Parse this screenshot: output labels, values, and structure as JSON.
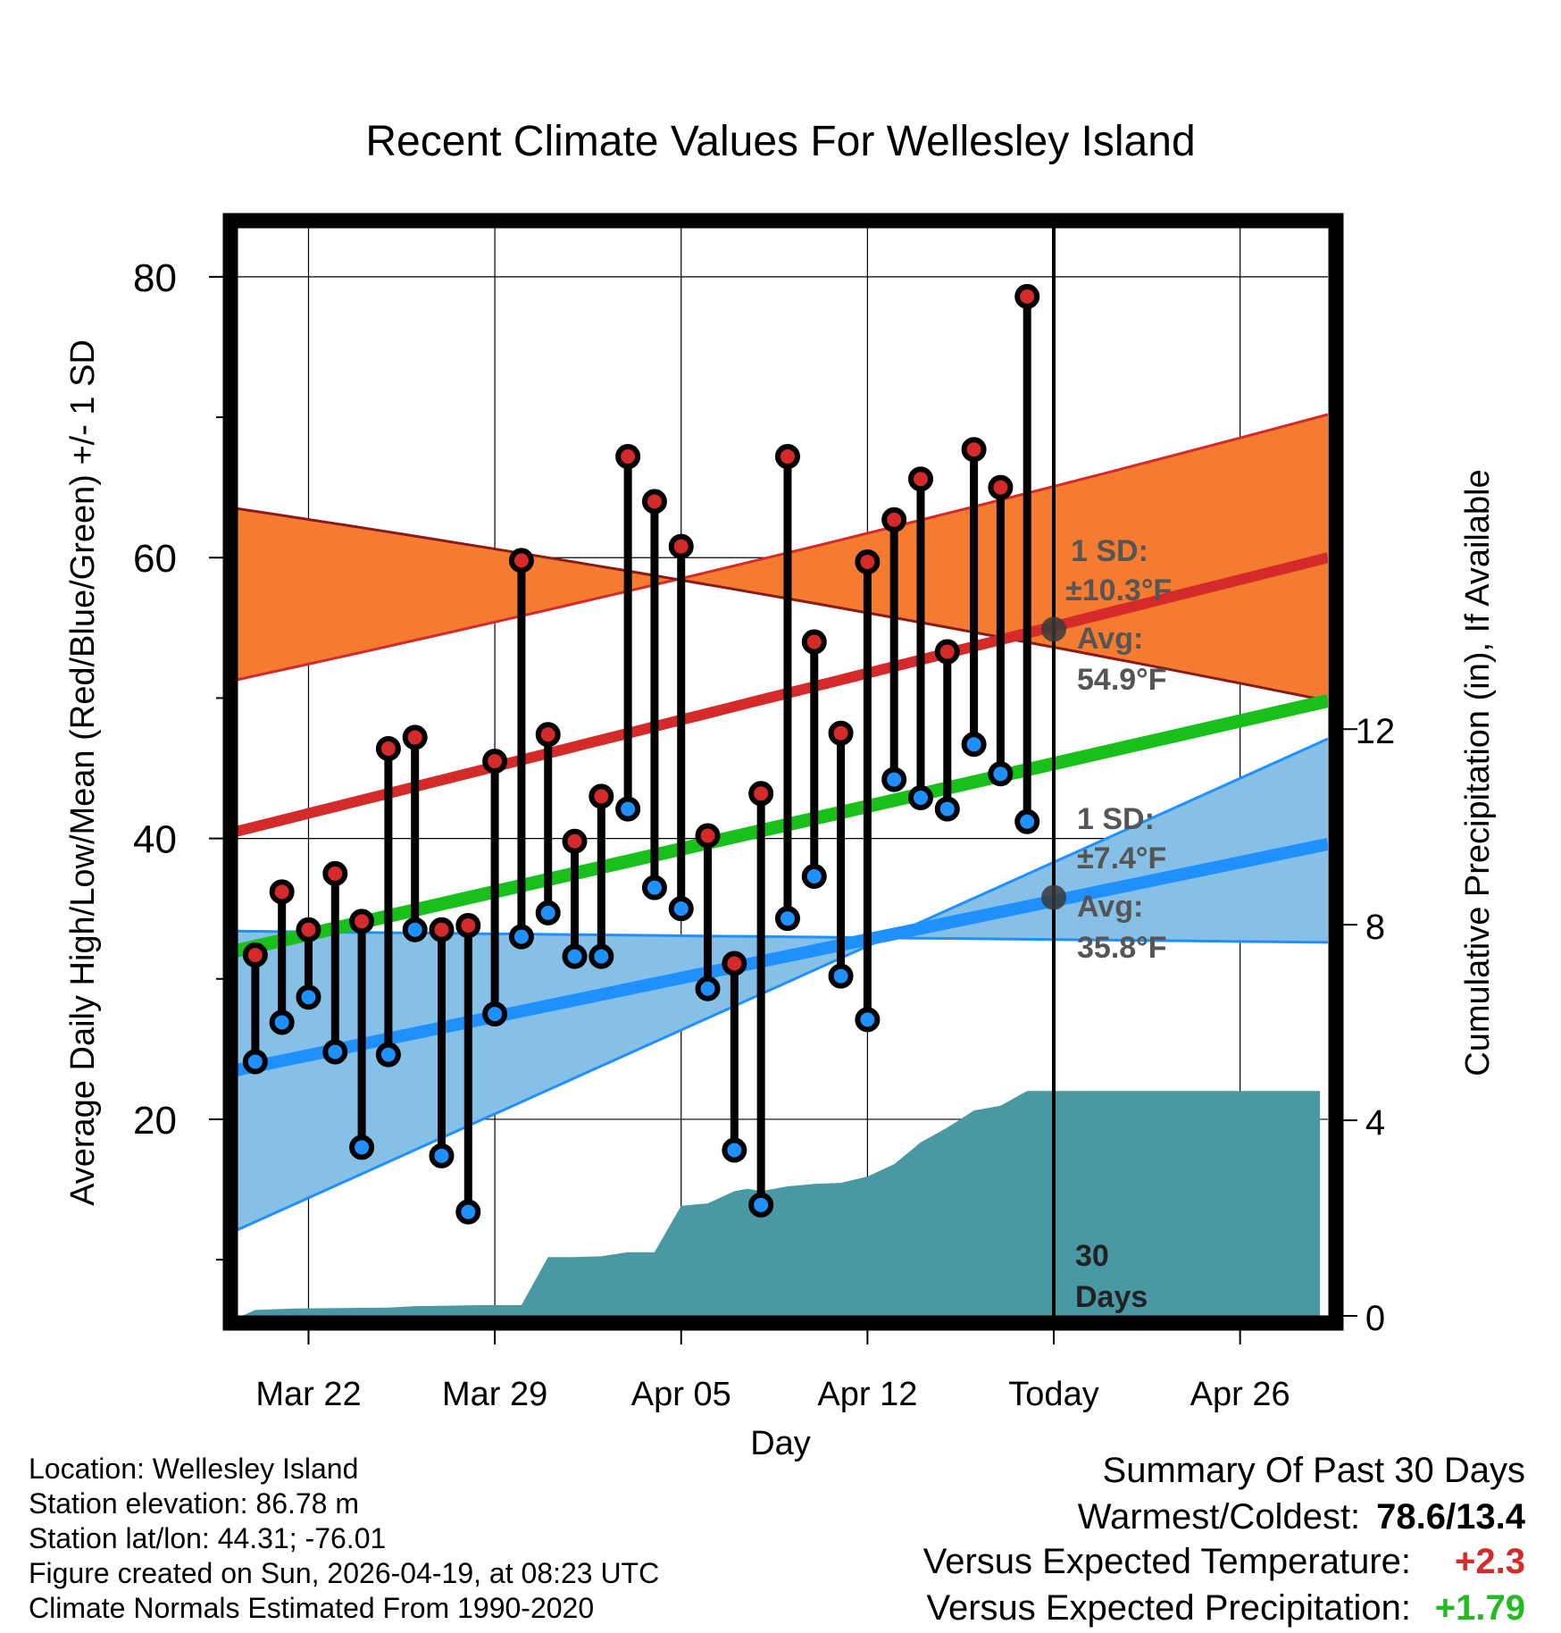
{
  "chart_data": {
    "type": "line",
    "title": "Recent Climate Values For Wellesley Island",
    "xlabel": "Day",
    "ylabel": "Average Daily High/Low/Mean (Red/Blue/Green) +/- 1 SD",
    "y2label": "Cumulative Precipitation (in), If Available",
    "ylim": [
      6,
      84
    ],
    "y2lim": [
      0,
      22.4
    ],
    "xlim": [
      -30.7,
      10.3
    ],
    "yticks": [
      20,
      40,
      60,
      80
    ],
    "y2ticks": [
      0,
      4,
      8,
      12
    ],
    "xticks": [
      {
        "x": -28,
        "label": "Mar 22"
      },
      {
        "x": -21,
        "label": "Mar 29"
      },
      {
        "x": -14,
        "label": "Apr 05"
      },
      {
        "x": -7,
        "label": "Apr 12"
      },
      {
        "x": 0,
        "label": "Today"
      },
      {
        "x": 7,
        "label": "Apr 26"
      }
    ],
    "x_days": [
      -30,
      -29,
      -28,
      -27,
      -26,
      -25,
      -24,
      -23,
      -22,
      -21,
      -20,
      -19,
      -18,
      -17,
      -16,
      -15,
      -14,
      -13,
      -12,
      -11,
      -10,
      -9,
      -8,
      -7,
      -6,
      -5,
      -4,
      -3,
      -2,
      -1
    ],
    "series": [
      {
        "name": "Daily High",
        "color": "#d42a2a",
        "values": [
          31.7,
          36.2,
          33.5,
          37.5,
          34.1,
          46.4,
          47.2,
          33.5,
          33.8,
          45.5,
          59.8,
          47.4,
          39.8,
          43.0,
          67.2,
          64.0,
          60.8,
          40.2,
          31.1,
          43.2,
          67.2,
          54.0,
          47.5,
          59.7,
          62.7,
          65.6,
          53.3,
          67.7,
          65.0,
          78.6
        ]
      },
      {
        "name": "Daily Low",
        "color": "#1e90ff",
        "values": [
          24.1,
          26.9,
          28.7,
          24.8,
          18.0,
          24.6,
          33.5,
          17.4,
          13.4,
          27.5,
          33.0,
          34.7,
          31.6,
          31.6,
          42.1,
          36.5,
          35.0,
          29.3,
          17.8,
          13.9,
          34.3,
          37.3,
          30.2,
          27.1,
          44.2,
          42.9,
          42.1,
          46.7,
          44.6,
          41.2
        ]
      }
    ],
    "normals": {
      "high_avg": [
        40.5,
        60.0
      ],
      "high_sd_band": [
        [
          51.3,
          63.5
        ],
        [
          70.2,
          49.8
        ]
      ],
      "low_avg": [
        23.5,
        39.6
      ],
      "low_sd_band": [
        [
          12.1,
          33.4
        ],
        [
          47.1,
          32.6
        ]
      ],
      "mean_avg": [
        32.0,
        49.8
      ]
    },
    "annotations": [
      {
        "id": "high_sd",
        "lines": [
          "1 SD:",
          "±10.3°F"
        ]
      },
      {
        "id": "high_avg",
        "lines": [
          "Avg:",
          "54.9°F"
        ],
        "value": 54.9
      },
      {
        "id": "low_sd",
        "lines": [
          "1 SD:",
          "±7.4°F"
        ]
      },
      {
        "id": "low_avg",
        "lines": [
          "Avg:",
          "35.8°F"
        ],
        "value": 35.8
      },
      {
        "id": "days",
        "lines": [
          "30",
          "Days"
        ]
      }
    ],
    "precip": {
      "name": "Cumulative Precipitation",
      "color": "#4899a3",
      "points": [
        [
          -30.5,
          0
        ],
        [
          -30,
          0.12
        ],
        [
          -28.5,
          0.15
        ],
        [
          -25,
          0.17
        ],
        [
          -24,
          0.2
        ],
        [
          -21.5,
          0.22
        ],
        [
          -20,
          0.22
        ],
        [
          -19,
          1.2
        ],
        [
          -18,
          1.2
        ],
        [
          -17,
          1.22
        ],
        [
          -16,
          1.3
        ],
        [
          -15,
          1.3
        ],
        [
          -14,
          2.25
        ],
        [
          -13,
          2.3
        ],
        [
          -12,
          2.55
        ],
        [
          -11.5,
          2.6
        ],
        [
          -11,
          2.55
        ],
        [
          -10,
          2.65
        ],
        [
          -9,
          2.7
        ],
        [
          -8,
          2.72
        ],
        [
          -7,
          2.85
        ],
        [
          -6,
          3.1
        ],
        [
          -5,
          3.55
        ],
        [
          -4,
          3.85
        ],
        [
          -3,
          4.2
        ],
        [
          -2,
          4.3
        ],
        [
          -1,
          4.6
        ],
        [
          0,
          4.6
        ],
        [
          10,
          4.6
        ]
      ]
    }
  },
  "colors": {
    "high": "#d42a2a",
    "low": "#1e90ff",
    "mean": "#19c019",
    "high_band": "#f47b30",
    "low_band": "#86c0e6",
    "precip": "#4899a3",
    "annotation": "#555555"
  },
  "footer": {
    "location": "Location: Wellesley Island",
    "elevation": "Station elevation: 86.78 m",
    "latlon": "Station lat/lon: 44.31; -76.01",
    "created": "Figure created on Sun, 2026-04-19, at 08:23 UTC",
    "normals": "Climate Normals Estimated From 1990-2020"
  },
  "summary": {
    "title": "Summary Of Past 30 Days",
    "warmest_label": "Warmest/Coldest:",
    "warmest_value": "78.6/13.4",
    "temp_label": "Versus Expected Temperature:",
    "temp_value": "+2.3",
    "temp_color": "#d42a2a",
    "precip_label": "Versus Expected Precipitation:",
    "precip_value": "+1.79",
    "precip_color": "#22bb22"
  }
}
